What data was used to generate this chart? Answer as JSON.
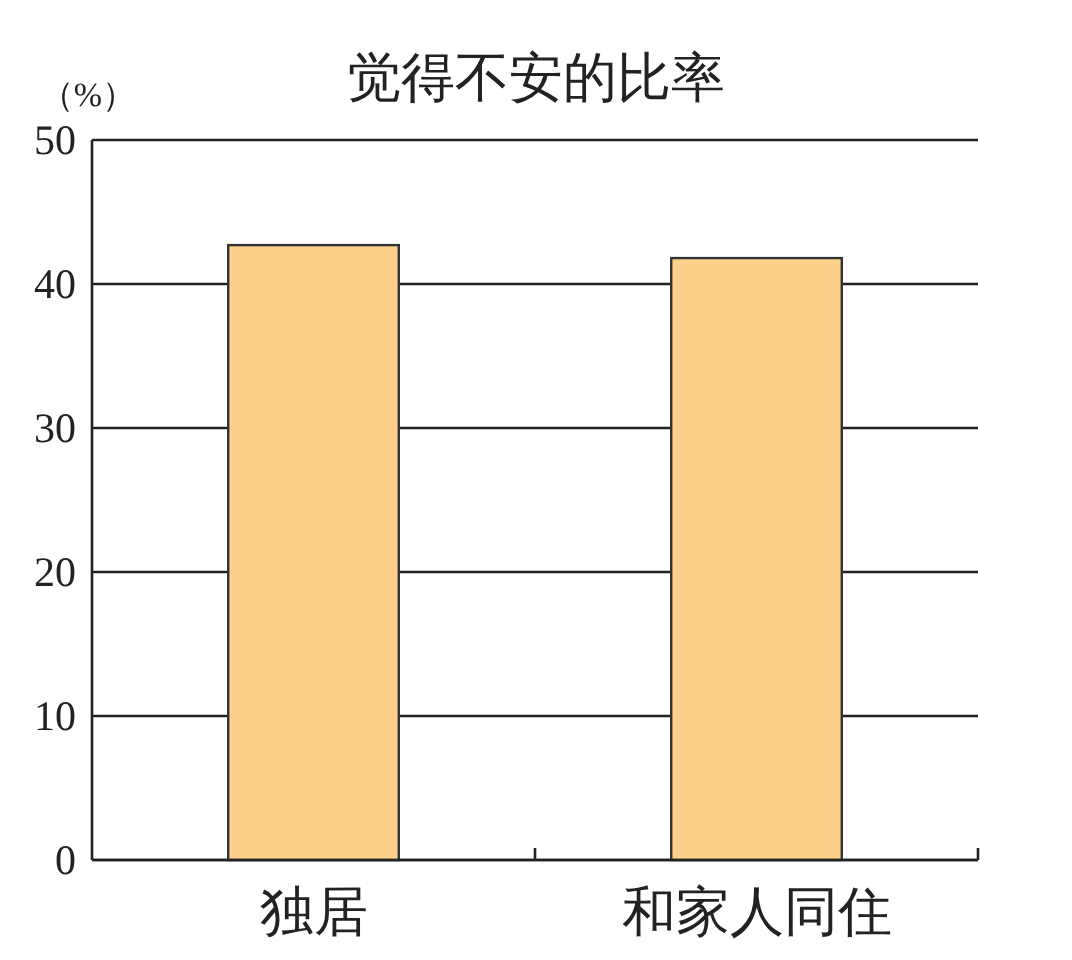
{
  "chart_data": {
    "type": "bar",
    "title": "觉得不安的比率",
    "ylabel": "（%）",
    "categories": [
      "独居",
      "和家人同住"
    ],
    "values": [
      42.7,
      41.8
    ],
    "color": "#fdd08c",
    "ylim": [
      0,
      50
    ],
    "yticks": [
      0,
      10,
      20,
      30,
      40,
      50
    ],
    "grid": "y"
  }
}
